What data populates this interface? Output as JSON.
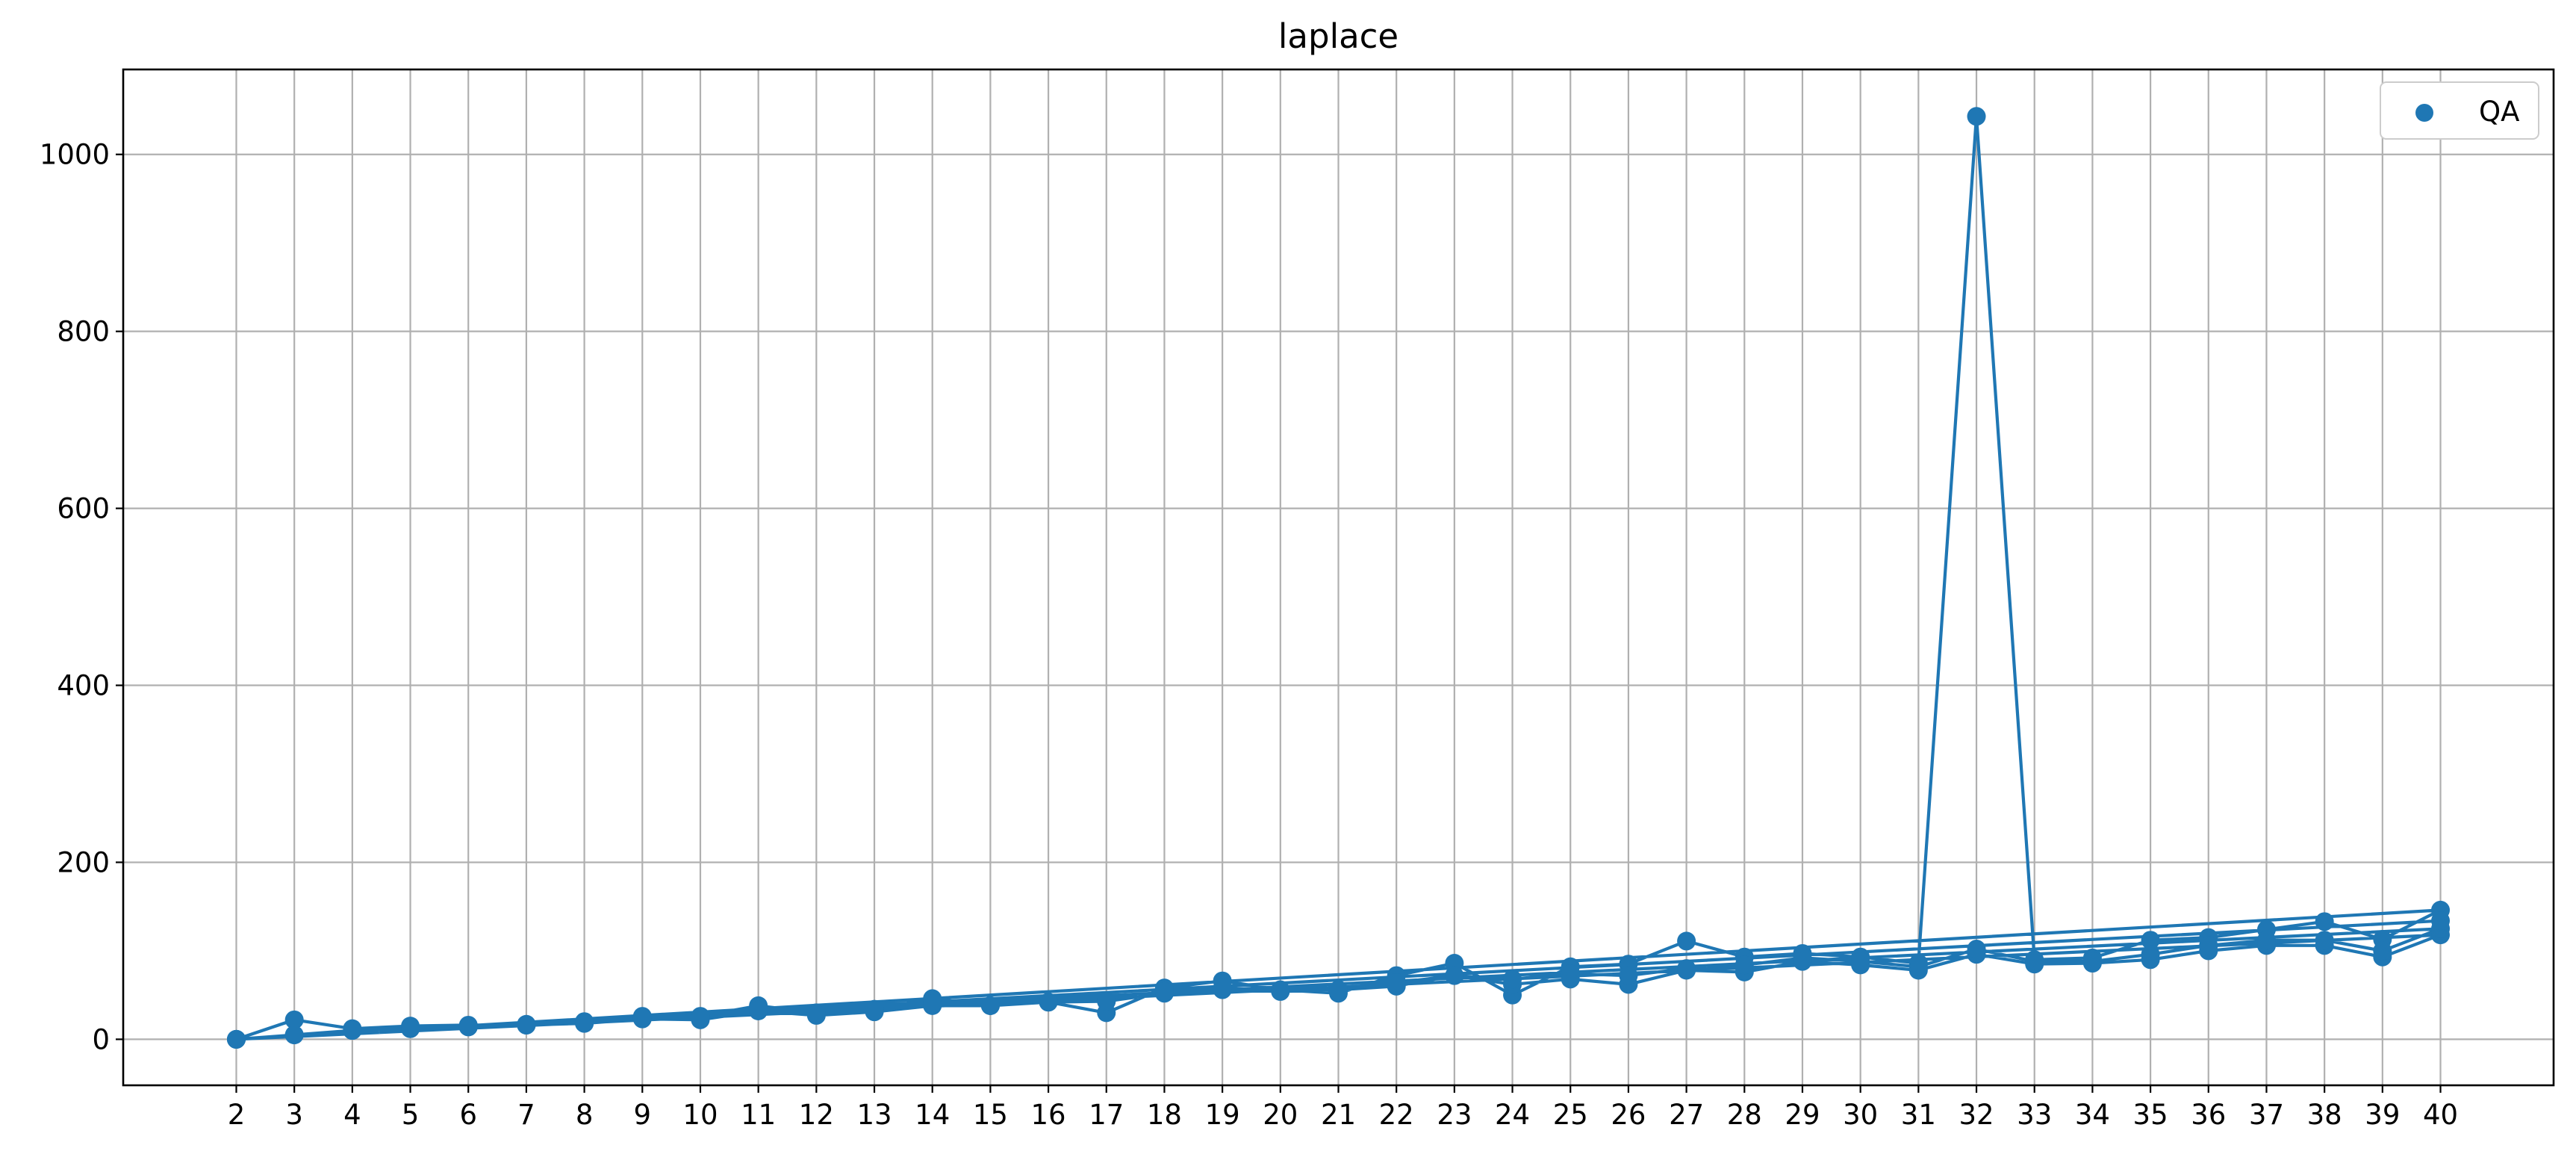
{
  "chart_data": {
    "type": "line",
    "title": "laplace",
    "xlabel": "",
    "ylabel": "",
    "xlim": [
      0.05,
      41.95
    ],
    "ylim": [
      -52,
      1096
    ],
    "x_ticks": [
      2,
      3,
      4,
      5,
      6,
      7,
      8,
      9,
      10,
      11,
      12,
      13,
      14,
      15,
      16,
      17,
      18,
      19,
      20,
      21,
      22,
      23,
      24,
      25,
      26,
      27,
      28,
      29,
      30,
      31,
      32,
      33,
      34,
      35,
      36,
      37,
      38,
      39,
      40
    ],
    "y_ticks": [
      0,
      200,
      400,
      600,
      800,
      1000
    ],
    "grid": true,
    "legend_position": "top-right",
    "color": "#1f77b4",
    "series": [
      {
        "name": "QA",
        "points": [
          [
            2,
            0
          ],
          [
            3,
            22
          ],
          [
            4,
            12
          ],
          [
            5,
            15
          ],
          [
            6,
            16
          ],
          [
            7,
            17
          ],
          [
            8,
            20
          ],
          [
            9,
            26
          ],
          [
            10,
            26
          ],
          [
            11,
            38
          ],
          [
            12,
            30
          ],
          [
            13,
            34
          ],
          [
            14,
            46
          ],
          [
            15,
            38
          ],
          [
            16,
            42
          ],
          [
            17,
            30
          ],
          [
            18,
            58
          ],
          [
            19,
            66
          ],
          [
            20,
            56
          ],
          [
            21,
            52
          ],
          [
            22,
            72
          ],
          [
            23,
            86
          ],
          [
            24,
            50
          ],
          [
            25,
            82
          ],
          [
            26,
            85
          ],
          [
            27,
            111
          ],
          [
            28,
            93
          ],
          [
            29,
            97
          ],
          [
            30,
            93
          ],
          [
            31,
            86
          ],
          [
            32,
            1043
          ],
          [
            33,
            90
          ],
          [
            34,
            92
          ],
          [
            35,
            112
          ],
          [
            36,
            115
          ],
          [
            37,
            124
          ],
          [
            38,
            133
          ],
          [
            39,
            113
          ],
          [
            40,
            146
          ],
          [
            2,
            0
          ],
          [
            3,
            5
          ],
          [
            4,
            10
          ],
          [
            5,
            12
          ],
          [
            6,
            14
          ],
          [
            7,
            16
          ],
          [
            8,
            18
          ],
          [
            9,
            23
          ],
          [
            10,
            22
          ],
          [
            11,
            32
          ],
          [
            12,
            27
          ],
          [
            13,
            31
          ],
          [
            14,
            38
          ],
          [
            15,
            38
          ],
          [
            16,
            42
          ],
          [
            17,
            43
          ],
          [
            18,
            52
          ],
          [
            19,
            56
          ],
          [
            20,
            54
          ],
          [
            21,
            56
          ],
          [
            22,
            60
          ],
          [
            23,
            72
          ],
          [
            24,
            62
          ],
          [
            25,
            68
          ],
          [
            26,
            62
          ],
          [
            27,
            78
          ],
          [
            28,
            76
          ],
          [
            29,
            88
          ],
          [
            30,
            84
          ],
          [
            31,
            78
          ],
          [
            32,
            96
          ],
          [
            33,
            85
          ],
          [
            34,
            86
          ],
          [
            35,
            90
          ],
          [
            36,
            100
          ],
          [
            37,
            106
          ],
          [
            38,
            106
          ],
          [
            39,
            93
          ],
          [
            40,
            118
          ],
          [
            2,
            0
          ],
          [
            3,
            5
          ],
          [
            4,
            10
          ],
          [
            5,
            12
          ],
          [
            6,
            14
          ],
          [
            7,
            16
          ],
          [
            8,
            18
          ],
          [
            9,
            24
          ],
          [
            10,
            24
          ],
          [
            11,
            33
          ],
          [
            12,
            28
          ],
          [
            13,
            32
          ],
          [
            14,
            40
          ],
          [
            15,
            38
          ],
          [
            16,
            42
          ],
          [
            17,
            43
          ],
          [
            18,
            54
          ],
          [
            19,
            58
          ],
          [
            20,
            55
          ],
          [
            21,
            56
          ],
          [
            22,
            64
          ],
          [
            23,
            72
          ],
          [
            24,
            68
          ],
          [
            25,
            74
          ],
          [
            26,
            72
          ],
          [
            27,
            80
          ],
          [
            28,
            84
          ],
          [
            29,
            92
          ],
          [
            30,
            88
          ],
          [
            31,
            82
          ],
          [
            32,
            102
          ],
          [
            33,
            88
          ],
          [
            34,
            88
          ],
          [
            35,
            96
          ],
          [
            36,
            106
          ],
          [
            37,
            112
          ],
          [
            38,
            112
          ],
          [
            39,
            100
          ],
          [
            40,
            125
          ],
          [
            2,
            0
          ],
          [
            40,
            134
          ]
        ]
      }
    ]
  }
}
